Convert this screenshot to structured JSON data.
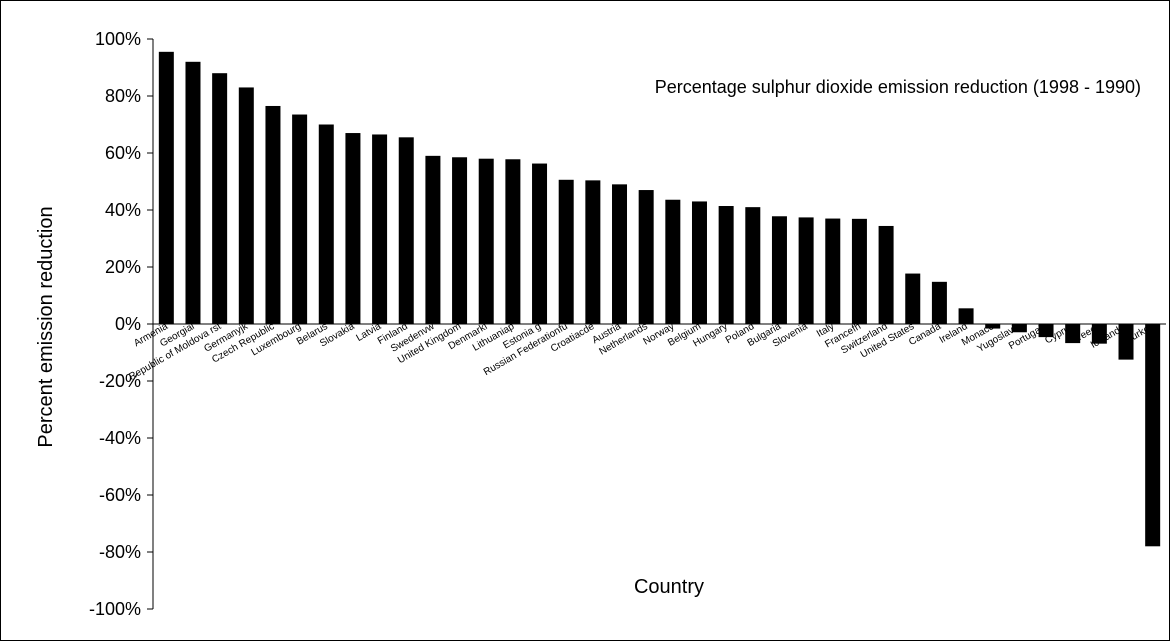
{
  "chart_data": {
    "type": "bar",
    "title": "Percentage sulphur dioxide emission reduction (1998 - 1990)",
    "xlabel": "Country",
    "ylabel": "Percent emission reduction",
    "ylim": [
      -100,
      100
    ],
    "y_ticks": [
      "100%",
      "80%",
      "60%",
      "40%",
      "20%",
      "0%",
      "-20%",
      "-40%",
      "-60%",
      "-80%",
      "-100%"
    ],
    "grid": false,
    "legend": "none",
    "bar_color": "#000000",
    "categories": [
      "Armenia",
      "Georgiai",
      "Republic of Moldova rst",
      "Germanyjk",
      "Czech Republic",
      "Luxembourg",
      "Belarus",
      "Slovakia",
      "Latvia",
      "Finland",
      "Swedenvw",
      "United Kingdom",
      "Denmarkf",
      "Lithuaniap",
      "Estonia g",
      "Russian Federationfu",
      "Croatiacde",
      "Austria",
      "Netherlands",
      "Norway",
      "Belgium",
      "Hungary",
      "Poland",
      "Bulgaria",
      "Slovenia",
      "Italy",
      "Francefh",
      "Switzerland",
      "United States",
      "Canada",
      "Ireland",
      "Monaco",
      "Yugoslavia",
      "Portugalq",
      "Cyprus",
      "Greece",
      "Icelandm",
      "Turkey"
    ],
    "values": [
      95.5,
      92,
      88,
      83,
      76.5,
      73.5,
      70,
      67,
      66.5,
      65.5,
      59,
      58.5,
      58,
      57.8,
      56.3,
      50.6,
      50.4,
      49,
      47,
      43.6,
      43,
      41.4,
      41,
      37.8,
      37.4,
      37,
      36.9,
      34.4,
      17.7,
      14.8,
      5.5,
      -1.6,
      -2.9,
      -4.6,
      -6.7,
      -6.9,
      -12.5,
      -78
    ]
  }
}
